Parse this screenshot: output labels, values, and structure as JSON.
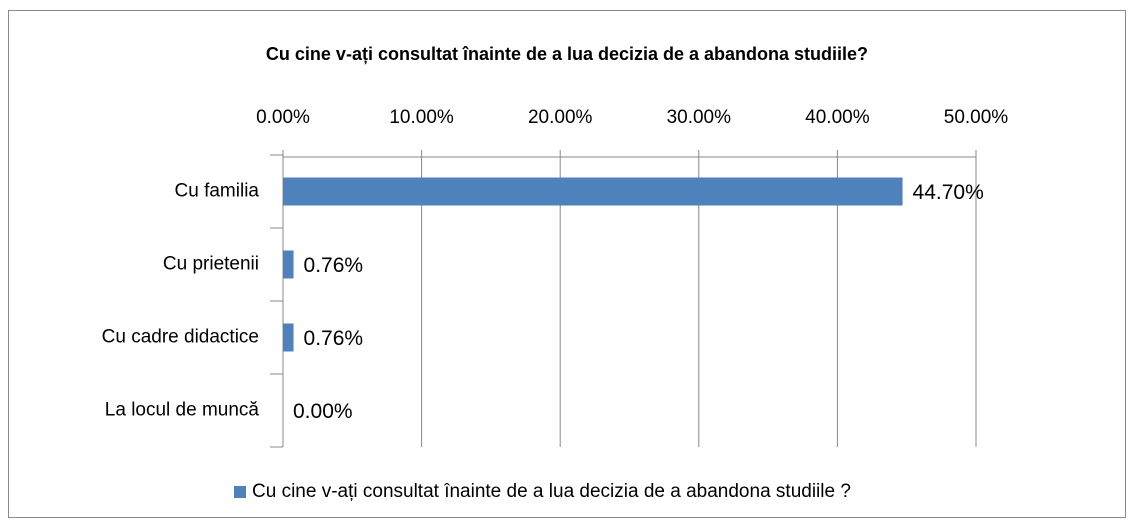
{
  "chart_data": {
    "type": "bar",
    "orientation": "horizontal",
    "title": "Cu cine v-ați consultat înainte de a lua decizia de a abandona studiile?",
    "categories": [
      "Cu familia",
      "Cu prietenii",
      "Cu cadre didactice",
      "La locul de muncă"
    ],
    "series": [
      {
        "name": "Cu cine v-ați consultat înainte de a lua decizia de a abandona studiile ?",
        "color": "#4f81bd",
        "values": [
          44.7,
          0.76,
          0.76,
          0
        ],
        "value_labels": [
          "44.70%",
          "0.76%",
          "0.76%",
          "0.00%"
        ]
      }
    ],
    "xlim": [
      0,
      50
    ],
    "xticks": [
      {
        "value": 0,
        "label": "0.00%"
      },
      {
        "value": 10,
        "label": "10.00%"
      },
      {
        "value": 20,
        "label": "20.00%"
      },
      {
        "value": 30,
        "label": "30.00%"
      },
      {
        "value": 40,
        "label": "40.00%"
      },
      {
        "value": 50,
        "label": "50.00%"
      }
    ],
    "grid": true,
    "legend": "bottom"
  }
}
